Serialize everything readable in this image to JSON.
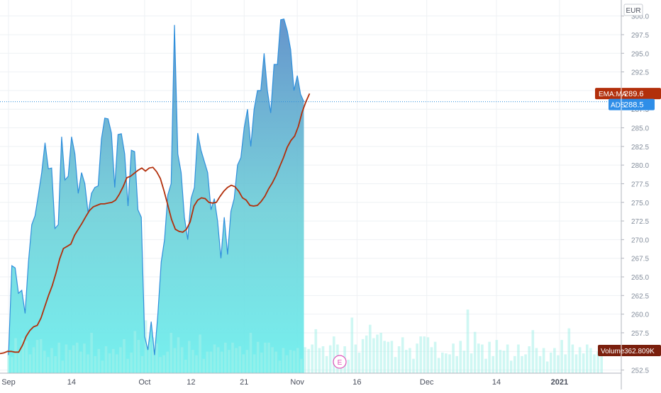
{
  "currency_label": "EUR",
  "chart_data": {
    "type": "area",
    "grid": true,
    "y_ticks": [
      "300.0",
      "297.5",
      "295.0",
      "292.5",
      "290.0",
      "287.5",
      "285.0",
      "282.5",
      "280.0",
      "277.5",
      "275.0",
      "272.5",
      "270.0",
      "267.5",
      "265.0",
      "262.5",
      "260.0",
      "257.5",
      "255.0",
      "252.5"
    ],
    "ylim": [
      251.7,
      301.2
    ],
    "x_ticks": [
      "Sep",
      "14",
      "Oct",
      "12",
      "21",
      "Nov",
      "16",
      "Dec",
      "14",
      "2021"
    ],
    "x_tick_index": [
      0,
      19,
      41,
      55,
      71,
      87,
      105,
      126,
      147,
      166
    ],
    "price": {
      "name": "ADS",
      "last_label": "288.5",
      "last_value": 288.5,
      "values": [
        254.5,
        266.5,
        266.2,
        262.8,
        263.2,
        260.1,
        267.0,
        272.0,
        273.2,
        276.0,
        279.0,
        283.0,
        279.5,
        279.6,
        271.5,
        272.0,
        283.8,
        278.0,
        278.5,
        283.8,
        281.5,
        276.2,
        279.0,
        277.5,
        273.5,
        276.2,
        277.0,
        277.2,
        283.5,
        286.3,
        286.2,
        284.3,
        277.0,
        284.1,
        284.2,
        281.5,
        274.5,
        282.0,
        281.8,
        274.0,
        273.0,
        257.0,
        255.2,
        259.0,
        254.5,
        260.0,
        267.0,
        270.0,
        276.0,
        277.5,
        298.8,
        281.5,
        279.0,
        273.0,
        270.0,
        275.5,
        277.0,
        284.3,
        282.0,
        280.5,
        279.0,
        274.0,
        275.5,
        272.5,
        267.5,
        273.0,
        268.0,
        273.8,
        275.5,
        280.0,
        281.0,
        285.0,
        287.5,
        282.5,
        287.5,
        290.0,
        290.0,
        295.0,
        290.0,
        287.0,
        293.5,
        293.5,
        299.5,
        299.6,
        298.0,
        295.5,
        290.0,
        292.0,
        289.5,
        288.5
      ]
    },
    "ema": {
      "name": "EMA:MA",
      "last_label": "289.6",
      "last_value": 289.6,
      "values": [
        254.7,
        254.8,
        255.0,
        255.0,
        254.9,
        254.9,
        255.8,
        257.0,
        257.8,
        258.3,
        258.5,
        259.5,
        261.0,
        262.5,
        263.8,
        265.5,
        267.4,
        268.8,
        269.1,
        269.4,
        270.6,
        271.4,
        272.2,
        273.1,
        273.9,
        274.4,
        274.6,
        274.8,
        274.8,
        274.9,
        275.0,
        275.3,
        276.1,
        277.1,
        278.3,
        278.5,
        278.9,
        279.3,
        279.6,
        279.2,
        279.6,
        279.7,
        279.1,
        278.2,
        276.5,
        274.6,
        272.7,
        271.4,
        271.1,
        271.0,
        271.4,
        272.4,
        274.5,
        275.3,
        275.6,
        275.5,
        275.0,
        274.9,
        275.0,
        275.8,
        276.5,
        277.0,
        277.3,
        277.1,
        276.5,
        275.6,
        275.3,
        274.6,
        274.5,
        274.6,
        275.1,
        275.8,
        276.8,
        277.6,
        278.6,
        279.8,
        281.0,
        282.4,
        283.3,
        283.9,
        285.2,
        287.1,
        288.5,
        289.6
      ]
    },
    "volume": {
      "name": "Volume",
      "last_label": "362.809K",
      "values": [
        2.6,
        1.8,
        3.9,
        2.4,
        3.9,
        3.6,
        2.1,
        2.9,
        3.7,
        3.8,
        2.5,
        1.8,
        2.8,
        1.9,
        3.4,
        1.4,
        3.2,
        2.6,
        3.1,
        3.4,
        2.4,
        3.3,
        2.1,
        4.5,
        1.9,
        2.7,
        1.4,
        3.0,
        2.2,
        2.7,
        2.1,
        2.9,
        3.8,
        1.6,
        2.3,
        4.7,
        3.7,
        1.9,
        5.9,
        3.5,
        4.0,
        3.3,
        1.8,
        2.0,
        2.4,
        4.5,
        2.8,
        4.0,
        2.9,
        1.5,
        3.6,
        2.6,
        2.0,
        4.3,
        1.6,
        2.4,
        2.4,
        3.2,
        2.9,
        2.4,
        3.4,
        2.6,
        3.4,
        2.8,
        3.0,
        2.1,
        2.6,
        4.5,
        2.1,
        3.5,
        2.3,
        3.4,
        3.4,
        2.9,
        2.4,
        1.4,
        2.8,
        2.0,
        2.6,
        2.5,
        2.8,
        1.6,
        2.9,
        2.7,
        3.2,
        4.9,
        2.8,
        3.0,
        1.9,
        3.1,
        4.1,
        3.2,
        1.8,
        3.0,
        1.5,
        6.2,
        3.2,
        2.3,
        3.8,
        4.2,
        5.4,
        3.9,
        4.3,
        4.5,
        3.6,
        3.5,
        3.6,
        1.8,
        3.0,
        4.0,
        2.6,
        2.8,
        1.6,
        3.3,
        4.1,
        4.1,
        4.0,
        2.9,
        3.5,
        1.7,
        2.3,
        2.2,
        2.1,
        3.3,
        1.9,
        3.6,
        2.5,
        7.1,
        2.2,
        4.6,
        3.3,
        3.2,
        1.6,
        3.5,
        1.9,
        3.7,
        2.6,
        2.5,
        3.2,
        1.4,
        1.9,
        3.2,
        1.9,
        2.1,
        3.0,
        4.8,
        2.8,
        1.9,
        2.8,
        1.3,
        2.3,
        2.8,
        2.0,
        3.7,
        2.1,
        5.0,
        3.2,
        2.1,
        2.9,
        2.2,
        3.2,
        2.8,
        2.1,
        2.4,
        2.4
      ]
    },
    "event_marker": "E"
  }
}
